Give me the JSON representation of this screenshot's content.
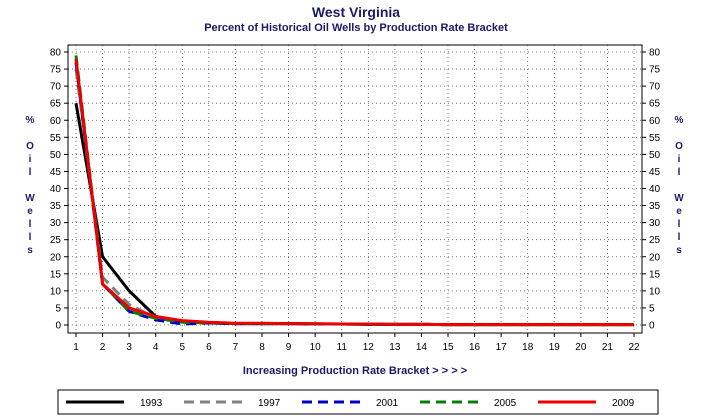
{
  "chart_data": {
    "type": "line",
    "title": "West Virginia",
    "subtitle": "Percent of Historical Oil Wells by Production Rate Bracket",
    "xlabel": "Increasing Production Rate Bracket > > > >",
    "ylabel": "% Oil Wells",
    "xlim": [
      1,
      22
    ],
    "ylim": [
      0,
      80
    ],
    "x": [
      1,
      2,
      3,
      4,
      5,
      6,
      7,
      8,
      9,
      10,
      11,
      12,
      13,
      14,
      15,
      16,
      17,
      18,
      19,
      20,
      21,
      22
    ],
    "yticks": [
      0,
      5,
      10,
      15,
      20,
      25,
      30,
      35,
      40,
      45,
      50,
      55,
      60,
      65,
      70,
      75,
      80
    ],
    "grid": true,
    "legend": "bottom",
    "series": [
      {
        "name": "1993",
        "color": "#000000",
        "dash": "solid",
        "values": [
          65,
          20,
          10,
          2.5,
          1.0,
          0.6,
          0.4,
          0.4,
          0.4,
          0.3,
          0.3,
          0.2,
          0.2,
          0.2,
          0.1,
          0.1,
          0.1,
          0.1,
          0.1,
          0.1,
          0.1,
          0.1
        ]
      },
      {
        "name": "1997",
        "color": "#808080",
        "dash": "dashed",
        "values": [
          75,
          14,
          6,
          2.0,
          1.0,
          0.6,
          0.4,
          0.4,
          0.4,
          0.3,
          0.3,
          0.2,
          0.2,
          0.2,
          0.1,
          0.1,
          0.1,
          0.1,
          0.1,
          0.1,
          0.1,
          0.1
        ]
      },
      {
        "name": "2001",
        "color": "#0000cc",
        "dash": "dashed",
        "values": [
          77,
          12,
          4,
          1.5,
          0.3,
          0.6,
          0.4,
          0.4,
          0.4,
          0.3,
          0.3,
          0.2,
          0.2,
          0.2,
          0.1,
          0.1,
          0.1,
          0.1,
          0.1,
          0.1,
          0.1,
          0.1
        ]
      },
      {
        "name": "2005",
        "color": "#008000",
        "dash": "dashed",
        "values": [
          79,
          12,
          4,
          2.0,
          0.8,
          0.6,
          0.4,
          0.4,
          0.4,
          0.3,
          0.3,
          0.2,
          0.2,
          0.2,
          0.1,
          0.1,
          0.1,
          0.1,
          0.1,
          0.1,
          0.1,
          0.1
        ]
      },
      {
        "name": "2009",
        "color": "#ee0000",
        "dash": "solid",
        "values": [
          78,
          12,
          5,
          2.5,
          1.3,
          0.8,
          0.5,
          0.5,
          0.4,
          0.4,
          0.3,
          0.3,
          0.2,
          0.2,
          0.1,
          0.1,
          0.1,
          0.1,
          0.1,
          0.1,
          0.1,
          0.1
        ]
      }
    ]
  }
}
